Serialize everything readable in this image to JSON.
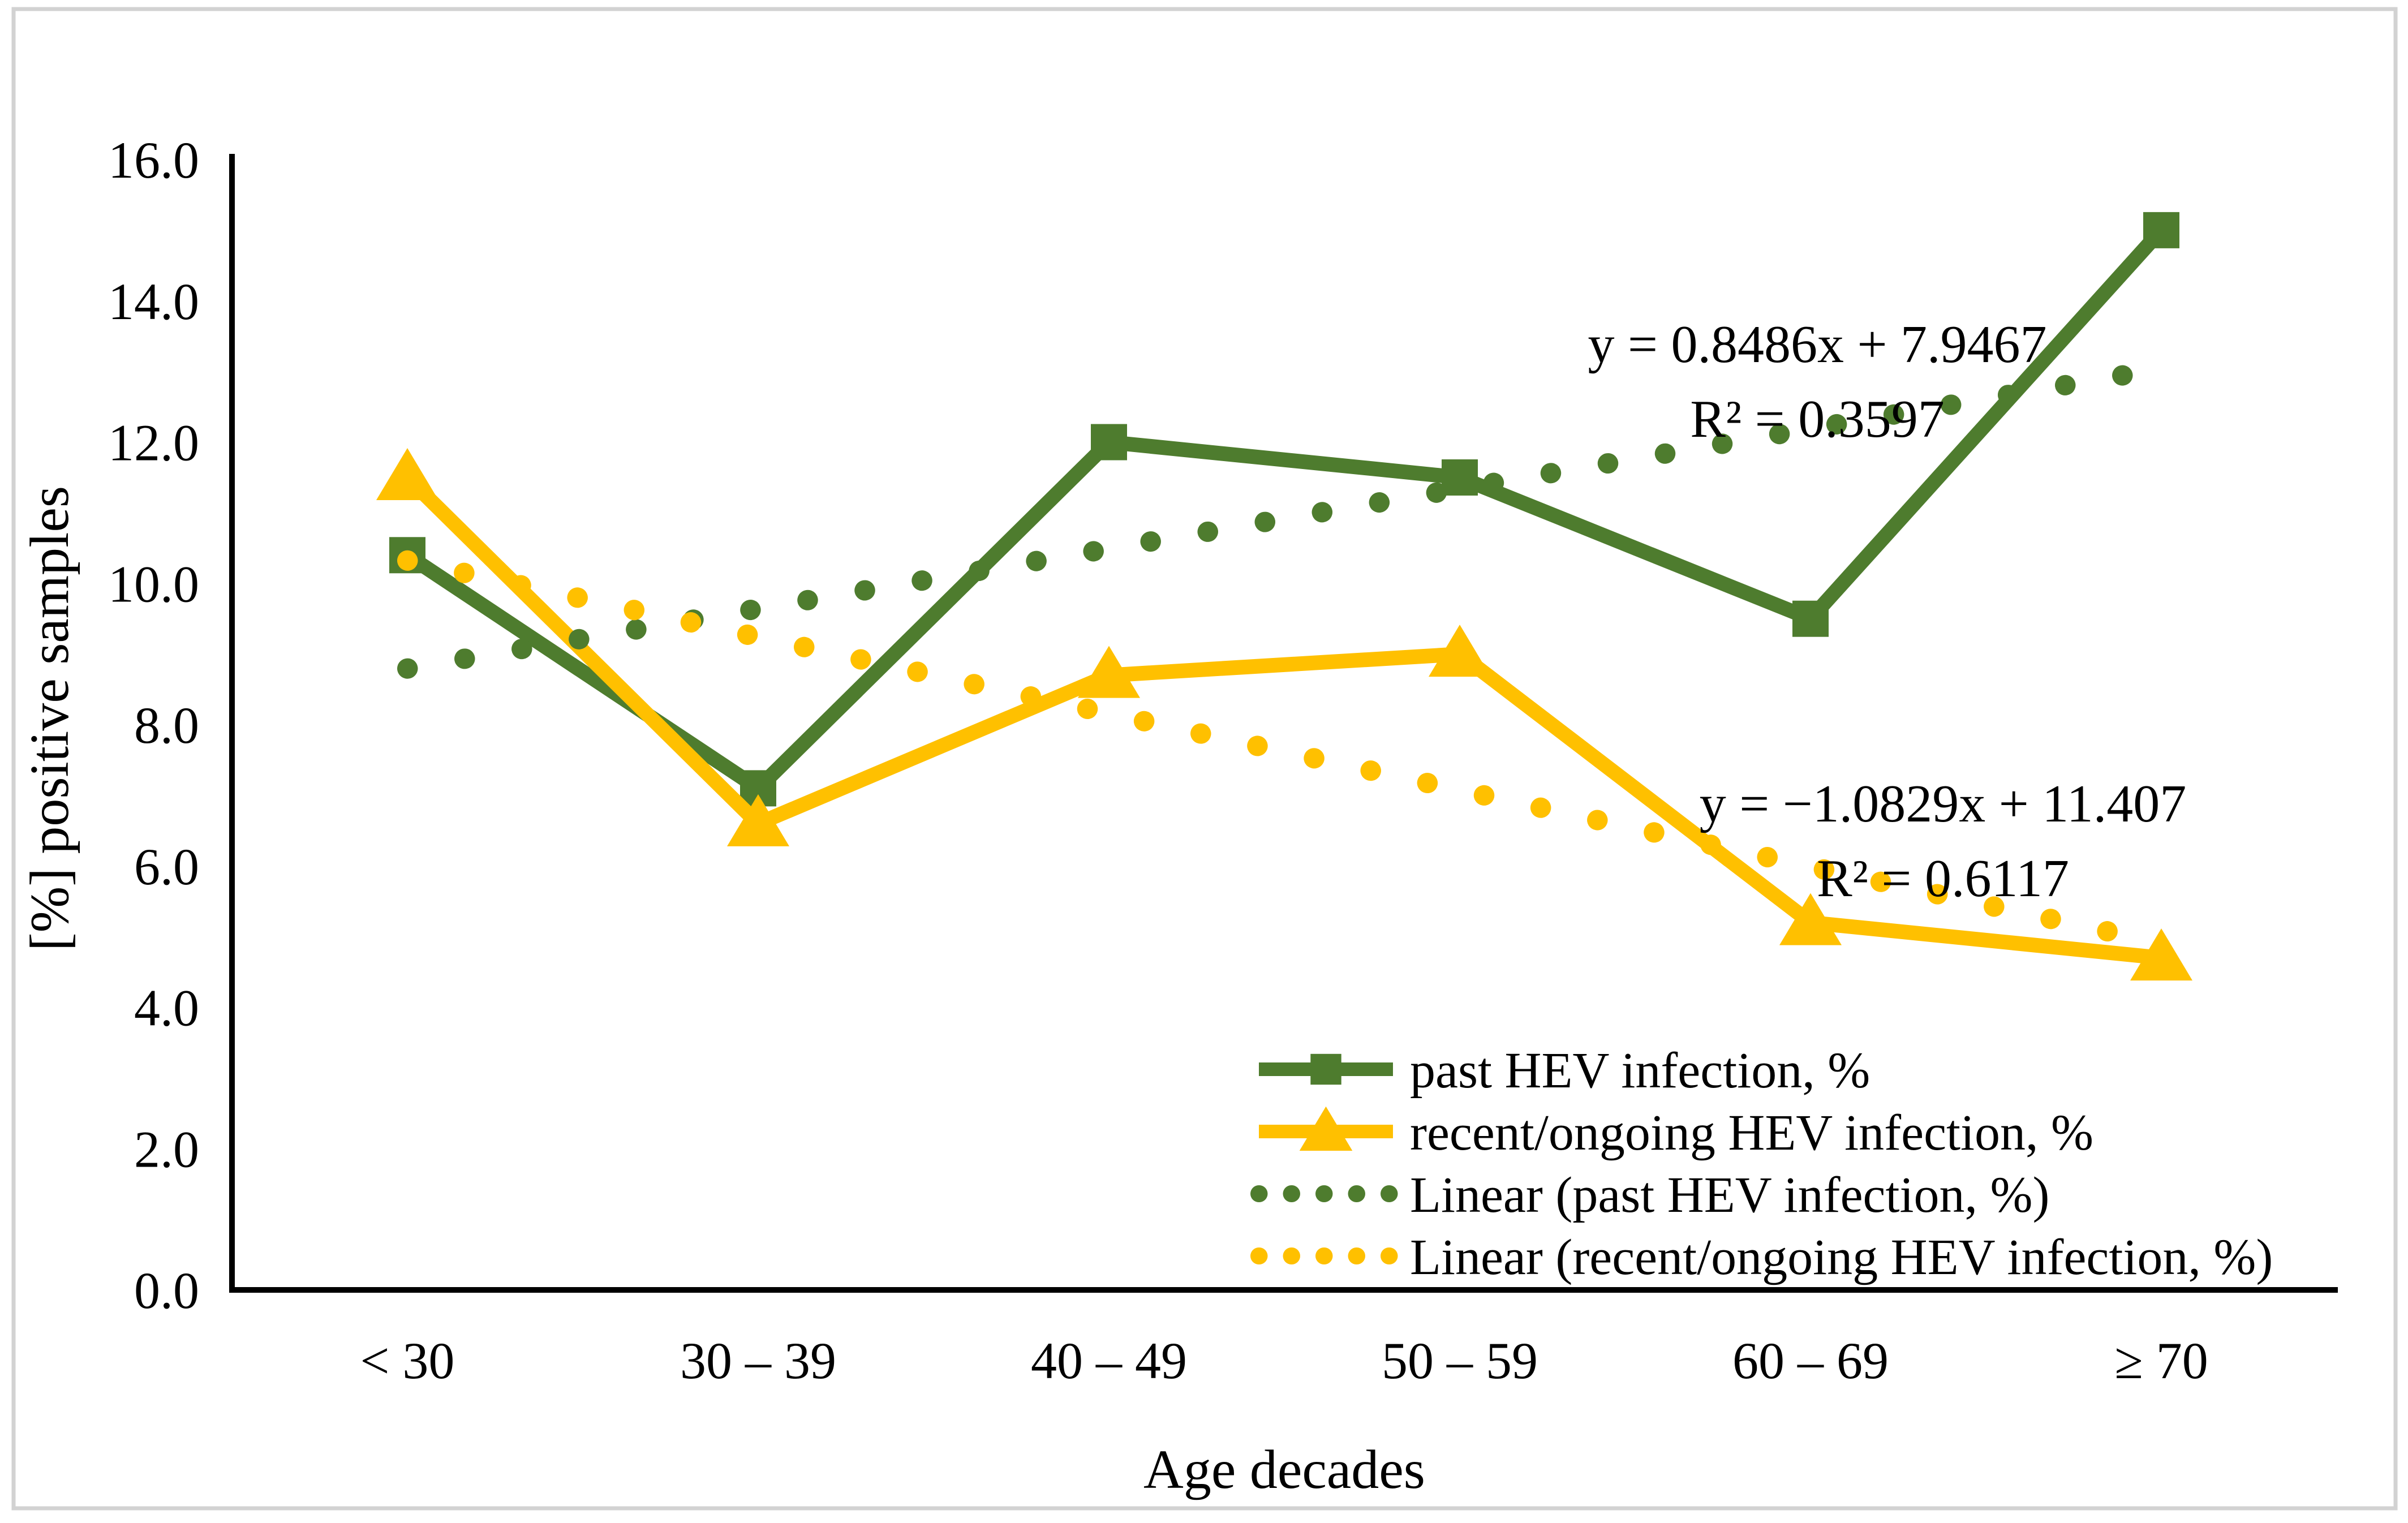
{
  "chart_data": {
    "type": "line",
    "title": "",
    "xlabel": "Age decades",
    "ylabel": "[%] positive samples",
    "categories": [
      "< 30",
      "30 – 39",
      "40 – 49",
      "50 – 59",
      "60 – 69",
      "≥ 70"
    ],
    "ylim": [
      0,
      16
    ],
    "ytick_step": 2,
    "ytick_labels": [
      "0.0",
      "2.0",
      "4.0",
      "6.0",
      "8.0",
      "10.0",
      "12.0",
      "14.0",
      "16.0"
    ],
    "grid": false,
    "legend_position": "inside-bottom-right",
    "series": [
      {
        "name": "past HEV infection, %",
        "values": [
          10.4,
          7.1,
          12.0,
          11.5,
          9.5,
          15.0
        ],
        "color": "#4e7c2e",
        "marker": "square",
        "style": "solid"
      },
      {
        "name": "recent/ongoing HEV infection, %",
        "values": [
          11.5,
          6.6,
          8.7,
          9.0,
          5.2,
          4.7
        ],
        "color": "#ffc000",
        "marker": "triangle",
        "style": "solid"
      }
    ],
    "trendlines": [
      {
        "name": "Linear (past HEV infection, %)",
        "color": "#4e7c2e",
        "slope": 0.8486,
        "intercept": 7.9467,
        "equation": "y = 0.8486x + 7.9467",
        "r_squared": "R² = 0.3597"
      },
      {
        "name": "Linear (recent/ongoing HEV infection, %)",
        "color": "#ffc000",
        "slope": -1.0829,
        "intercept": 11.407,
        "equation": "y = −1.0829x + 11.407",
        "r_squared": "R² = 0.6117"
      }
    ],
    "frame_color": "#d2d2d2",
    "axis_color": "#000000"
  }
}
